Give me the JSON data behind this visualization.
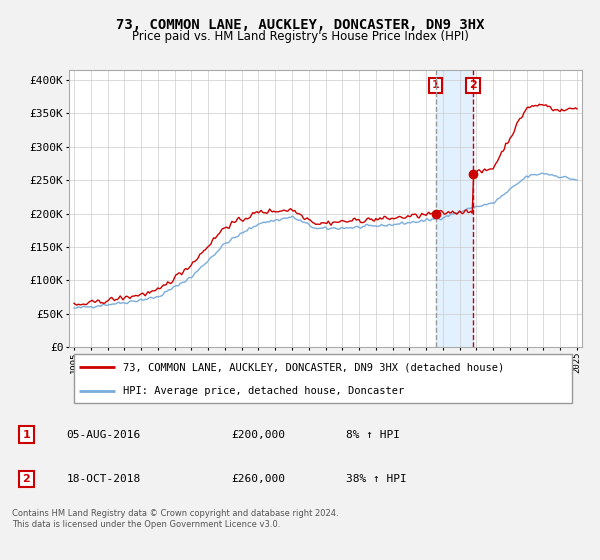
{
  "title": "73, COMMON LANE, AUCKLEY, DONCASTER, DN9 3HX",
  "subtitle": "Price paid vs. HM Land Registry's House Price Index (HPI)",
  "ylabel_ticks": [
    "£0",
    "£50K",
    "£100K",
    "£150K",
    "£200K",
    "£250K",
    "£300K",
    "£350K",
    "£400K"
  ],
  "ytick_values": [
    0,
    50000,
    100000,
    150000,
    200000,
    250000,
    300000,
    350000,
    400000
  ],
  "ylim": [
    0,
    415000
  ],
  "xlim_start": 1994.7,
  "xlim_end": 2025.3,
  "hpi_color": "#7aaddc",
  "price_color": "#cc0000",
  "marker_color": "#cc0000",
  "sale1_x": 2016.58,
  "sale1_y": 200000,
  "sale1_label": "1",
  "sale2_x": 2018.79,
  "sale2_y": 260000,
  "sale2_label": "2",
  "legend_line1": "73, COMMON LANE, AUCKLEY, DONCASTER, DN9 3HX (detached house)",
  "legend_line2": "HPI: Average price, detached house, Doncaster",
  "footer": "Contains HM Land Registry data © Crown copyright and database right 2024.\nThis data is licensed under the Open Government Licence v3.0.",
  "bg_color": "#f2f2f2",
  "plot_bg_color": "#ffffff",
  "grid_color": "#cccccc",
  "annotation_box_color": "#cc0000",
  "shade_color": "#ddeeff"
}
